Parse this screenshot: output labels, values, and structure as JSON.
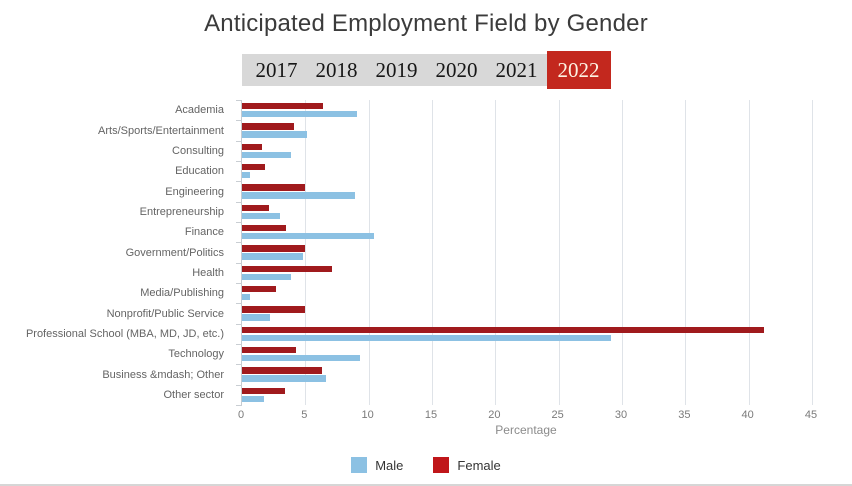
{
  "title": "Anticipated Employment Field by Gender",
  "tabs": {
    "years": [
      {
        "label": "2017",
        "active": false
      },
      {
        "label": "2018",
        "active": false
      },
      {
        "label": "2019",
        "active": false
      },
      {
        "label": "2020",
        "active": false
      },
      {
        "label": "2021",
        "active": false
      },
      {
        "label": "2022",
        "active": true
      }
    ],
    "inactive_bg": "#d8d8d8",
    "active_bg": "#c3281e",
    "active_text": "#fdf3e3"
  },
  "chart_data": {
    "type": "bar",
    "orientation": "horizontal",
    "title": "Anticipated Employment Field by Gender",
    "xlabel": "Percentage",
    "xlim": [
      0,
      45
    ],
    "xticks": [
      0,
      5,
      10,
      15,
      20,
      25,
      30,
      35,
      40,
      45
    ],
    "grid": true,
    "legend_position": "bottom",
    "bar_order_top_to_bottom": [
      "Female",
      "Male"
    ],
    "categories": [
      "Academia",
      "Arts/Sports/Entertainment",
      "Consulting",
      "Education",
      "Engineering",
      "Entrepreneurship",
      "Finance",
      "Government/Politics",
      "Health",
      "Media/Publishing",
      "Nonprofit/Public Service",
      "Professional School (MBA, MD, JD, etc.)",
      "Technology",
      "Business &mdash; Other",
      "Other sector"
    ],
    "series": [
      {
        "name": "Male",
        "color": "#8cc1e3",
        "values": [
          9.1,
          5.1,
          3.9,
          0.6,
          8.9,
          3.0,
          10.4,
          4.8,
          3.9,
          0.6,
          2.2,
          29.1,
          9.3,
          6.6,
          1.7
        ]
      },
      {
        "name": "Female",
        "color": "#a01a1d",
        "values": [
          6.4,
          4.1,
          1.6,
          1.8,
          5.0,
          2.1,
          3.5,
          5.0,
          7.1,
          2.7,
          5.0,
          41.2,
          4.3,
          6.3,
          3.4
        ]
      }
    ]
  },
  "legend": {
    "items": [
      {
        "label": "Male",
        "swatch": "#8cc1e3"
      },
      {
        "label": "Female",
        "swatch": "#c0161a"
      }
    ]
  },
  "colors": {
    "gridline": "#dfe3e8",
    "axis": "#c5cbd1",
    "tick_text": "#7a7a7a",
    "category_text": "#646464",
    "title_text": "#3b3b3b"
  }
}
